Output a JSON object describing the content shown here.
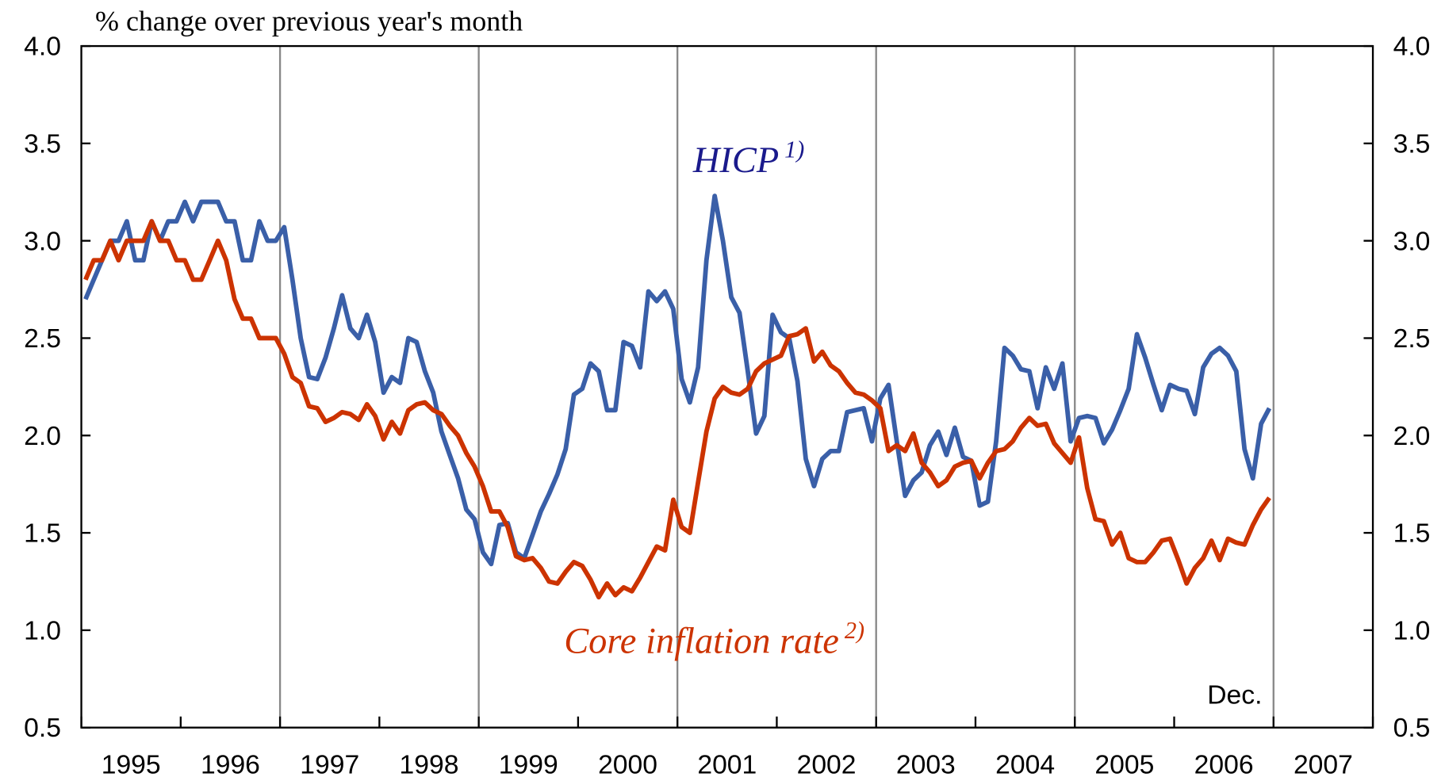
{
  "chart_data": {
    "type": "line",
    "y_label": "% change over previous year's month",
    "xlim": [
      1995,
      2008
    ],
    "xticks": [
      1995,
      1996,
      1997,
      1998,
      1999,
      2000,
      2001,
      2002,
      2003,
      2004,
      2005,
      2006,
      2007,
      2008
    ],
    "year_labels": [
      {
        "value": 1995.5,
        "label": "1995"
      },
      {
        "value": 1996.5,
        "label": "1996"
      },
      {
        "value": 1997.5,
        "label": "1997"
      },
      {
        "value": 1998.5,
        "label": "1998"
      },
      {
        "value": 1999.5,
        "label": "1999"
      },
      {
        "value": 2000.5,
        "label": "2000"
      },
      {
        "value": 2001.5,
        "label": "2001"
      },
      {
        "value": 2002.5,
        "label": "2002"
      },
      {
        "value": 2003.5,
        "label": "2003"
      },
      {
        "value": 2004.5,
        "label": "2004"
      },
      {
        "value": 2005.5,
        "label": "2005"
      },
      {
        "value": 2006.5,
        "label": "2006"
      },
      {
        "value": 2007.5,
        "label": "2007"
      }
    ],
    "vlines": [
      1997,
      1999,
      2001,
      2003,
      2005,
      2007
    ],
    "ylim": [
      0.5,
      4.0
    ],
    "yticks": [
      {
        "value": 0.5,
        "label": "0.5"
      },
      {
        "value": 1.0,
        "label": "1.0"
      },
      {
        "value": 1.5,
        "label": "1.5"
      },
      {
        "value": 2.0,
        "label": "2.0"
      },
      {
        "value": 2.5,
        "label": "2.5"
      },
      {
        "value": 3.0,
        "label": "3.0"
      },
      {
        "value": 3.5,
        "label": "3.5"
      },
      {
        "value": 4.0,
        "label": "4.0"
      }
    ],
    "y2lim": [
      0.5,
      4.0
    ],
    "y2ticks": [
      {
        "value": 0.5,
        "label": "0.5"
      },
      {
        "value": 1.0,
        "label": "1.0"
      },
      {
        "value": 1.5,
        "label": "1.5"
      },
      {
        "value": 2.0,
        "label": "2.0"
      },
      {
        "value": 2.5,
        "label": "2.5"
      },
      {
        "value": 3.0,
        "label": "3.0"
      },
      {
        "value": 3.5,
        "label": "3.5"
      },
      {
        "value": 4.0,
        "label": "4.0"
      }
    ],
    "x": [
      1995.042,
      1995.125,
      1995.208,
      1995.292,
      1995.375,
      1995.458,
      1995.542,
      1995.625,
      1995.708,
      1995.792,
      1995.875,
      1995.958,
      1996.042,
      1996.125,
      1996.208,
      1996.292,
      1996.375,
      1996.458,
      1996.542,
      1996.625,
      1996.708,
      1996.792,
      1996.875,
      1996.958,
      1997.042,
      1997.125,
      1997.208,
      1997.292,
      1997.375,
      1997.458,
      1997.542,
      1997.625,
      1997.708,
      1997.792,
      1997.875,
      1997.958,
      1998.042,
      1998.125,
      1998.208,
      1998.292,
      1998.375,
      1998.458,
      1998.542,
      1998.625,
      1998.708,
      1998.792,
      1998.875,
      1998.958,
      1999.042,
      1999.125,
      1999.208,
      1999.292,
      1999.375,
      1999.458,
      1999.542,
      1999.625,
      1999.708,
      1999.792,
      1999.875,
      1999.958,
      2000.042,
      2000.125,
      2000.208,
      2000.292,
      2000.375,
      2000.458,
      2000.542,
      2000.625,
      2000.708,
      2000.792,
      2000.875,
      2000.958,
      2001.042,
      2001.125,
      2001.208,
      2001.292,
      2001.375,
      2001.458,
      2001.542,
      2001.625,
      2001.708,
      2001.792,
      2001.875,
      2001.958,
      2002.042,
      2002.125,
      2002.208,
      2002.292,
      2002.375,
      2002.458,
      2002.542,
      2002.625,
      2002.708,
      2002.792,
      2002.875,
      2002.958,
      2003.042,
      2003.125,
      2003.208,
      2003.292,
      2003.375,
      2003.458,
      2003.542,
      2003.625,
      2003.708,
      2003.792,
      2003.875,
      2003.958,
      2004.042,
      2004.125,
      2004.208,
      2004.292,
      2004.375,
      2004.458,
      2004.542,
      2004.625,
      2004.708,
      2004.792,
      2004.875,
      2004.958,
      2005.042,
      2005.125,
      2005.208,
      2005.292,
      2005.375,
      2005.458,
      2005.542,
      2005.625,
      2005.708,
      2005.792,
      2005.875,
      2005.958,
      2006.042,
      2006.125,
      2006.208,
      2006.292,
      2006.375,
      2006.458,
      2006.542,
      2006.625,
      2006.708,
      2006.792,
      2006.875,
      2006.958
    ],
    "series": [
      {
        "name": "HICP",
        "note": "1)",
        "color": "#3a5fa8",
        "label_color": "#1a1a8c",
        "values": [
          2.7,
          2.8,
          2.9,
          3.0,
          3.0,
          3.1,
          2.9,
          2.9,
          3.1,
          3.0,
          3.1,
          3.1,
          3.2,
          3.1,
          3.2,
          3.2,
          3.2,
          3.1,
          3.1,
          2.9,
          2.9,
          3.1,
          3.0,
          3.0,
          3.07,
          2.8,
          2.5,
          2.3,
          2.29,
          2.4,
          2.55,
          2.72,
          2.55,
          2.5,
          2.62,
          2.48,
          2.22,
          2.3,
          2.27,
          2.5,
          2.48,
          2.33,
          2.22,
          2.02,
          1.9,
          1.78,
          1.62,
          1.57,
          1.4,
          1.34,
          1.54,
          1.55,
          1.4,
          1.37,
          1.49,
          1.61,
          1.7,
          1.8,
          1.93,
          2.21,
          2.24,
          2.37,
          2.33,
          2.13,
          2.13,
          2.48,
          2.46,
          2.35,
          2.74,
          2.69,
          2.74,
          2.65,
          2.29,
          2.17,
          2.35,
          2.9,
          3.23,
          3.0,
          2.71,
          2.63,
          2.33,
          2.01,
          2.1,
          2.62,
          2.53,
          2.5,
          2.28,
          1.88,
          1.74,
          1.88,
          1.92,
          1.92,
          2.12,
          2.13,
          2.14,
          1.97,
          2.19,
          2.26,
          1.97,
          1.69,
          1.77,
          1.81,
          1.95,
          2.02,
          1.9,
          2.04,
          1.89,
          1.87,
          1.64,
          1.66,
          1.97,
          2.45,
          2.41,
          2.34,
          2.33,
          2.14,
          2.35,
          2.24,
          2.37,
          1.97,
          2.09,
          2.1,
          2.09,
          1.96,
          2.03,
          2.13,
          2.24,
          2.52,
          2.4,
          2.26,
          2.13,
          2.26,
          2.24,
          2.23,
          2.11,
          2.35,
          2.42,
          2.45,
          2.41,
          2.33,
          1.93,
          1.78,
          2.06,
          2.14
        ]
      },
      {
        "name": "Core inflation rate",
        "note": "2)",
        "color": "#cc3300",
        "label_color": "#cc3300",
        "values": [
          2.8,
          2.9,
          2.9,
          3.0,
          2.9,
          3.0,
          3.0,
          3.0,
          3.1,
          3.0,
          3.0,
          2.9,
          2.9,
          2.8,
          2.8,
          2.9,
          3.0,
          2.9,
          2.7,
          2.6,
          2.6,
          2.5,
          2.5,
          2.5,
          2.42,
          2.3,
          2.27,
          2.15,
          2.14,
          2.07,
          2.09,
          2.12,
          2.11,
          2.08,
          2.16,
          2.1,
          1.98,
          2.07,
          2.01,
          2.13,
          2.16,
          2.17,
          2.13,
          2.11,
          2.05,
          2.0,
          1.91,
          1.84,
          1.74,
          1.61,
          1.61,
          1.53,
          1.38,
          1.36,
          1.37,
          1.32,
          1.25,
          1.24,
          1.3,
          1.35,
          1.33,
          1.26,
          1.17,
          1.24,
          1.18,
          1.22,
          1.2,
          1.27,
          1.35,
          1.43,
          1.41,
          1.67,
          1.53,
          1.5,
          1.76,
          2.02,
          2.19,
          2.25,
          2.22,
          2.21,
          2.24,
          2.33,
          2.37,
          2.39,
          2.41,
          2.51,
          2.52,
          2.55,
          2.38,
          2.43,
          2.36,
          2.33,
          2.27,
          2.22,
          2.21,
          2.18,
          2.14,
          1.92,
          1.95,
          1.92,
          2.01,
          1.86,
          1.81,
          1.74,
          1.77,
          1.84,
          1.86,
          1.87,
          1.78,
          1.86,
          1.92,
          1.93,
          1.97,
          2.04,
          2.09,
          2.05,
          2.06,
          1.96,
          1.91,
          1.86,
          1.99,
          1.73,
          1.57,
          1.56,
          1.44,
          1.5,
          1.37,
          1.35,
          1.35,
          1.4,
          1.46,
          1.47,
          1.36,
          1.24,
          1.32,
          1.37,
          1.46,
          1.36,
          1.47,
          1.45,
          1.44,
          1.54,
          1.62,
          1.68
        ]
      }
    ],
    "annotations": [
      {
        "text": "Dec."
      }
    ]
  }
}
